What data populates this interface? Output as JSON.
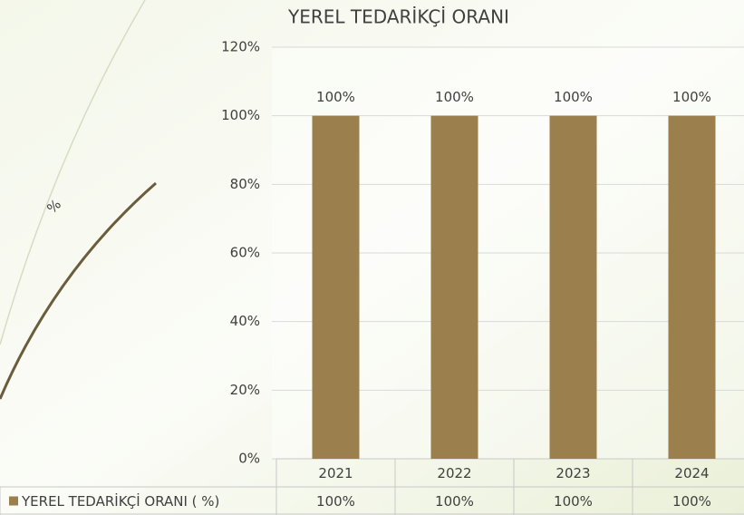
{
  "chart_data": {
    "type": "bar",
    "title": "YEREL TEDARİKÇİ ORANI",
    "y_label": "%",
    "categories": [
      "2021",
      "2022",
      "2023",
      "2024"
    ],
    "series": [
      {
        "name": "YEREL TEDARİKÇİ ORANI ( %)",
        "color": "#9b7f4c",
        "values": [
          100,
          100,
          100,
          100
        ],
        "value_labels": [
          "100%",
          "100%",
          "100%",
          "100%"
        ]
      }
    ],
    "ylim": [
      0,
      120
    ],
    "yticks": [
      {
        "value": 0,
        "label": "0%"
      },
      {
        "value": 20,
        "label": "20%"
      },
      {
        "value": 40,
        "label": "40%"
      },
      {
        "value": 60,
        "label": "60%"
      },
      {
        "value": 80,
        "label": "80%"
      },
      {
        "value": 100,
        "label": "100%"
      },
      {
        "value": 120,
        "label": "120%"
      }
    ],
    "grid": true,
    "legend": "data-table"
  }
}
